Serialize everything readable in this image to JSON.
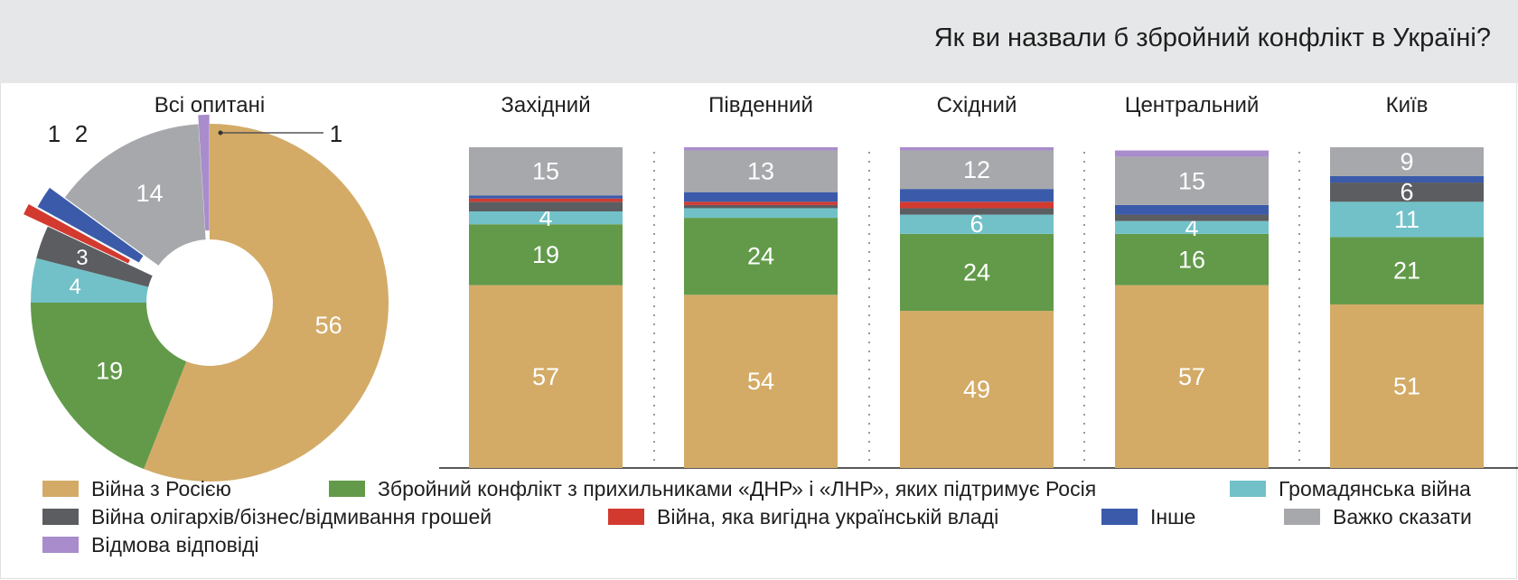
{
  "title": "Як ви назвали б збройний конфлікт в Україні?",
  "colors": {
    "russia_war": "#d3ab67",
    "armed_conflict": "#629a4a",
    "civil_war": "#72c1c8",
    "oligarchs": "#5b5d60",
    "govt_benefit": "#d23a30",
    "other": "#3b5baa",
    "hard_to_say": "#a7a8ab",
    "refused": "#a88ccb"
  },
  "chart_data": [
    {
      "type": "pie",
      "title": "Всі опитані",
      "categories": [
        "Війна з Росією",
        "Збройний конфлікт з прихильниками «ДНР» і «ЛНР», яких підтримує Росія",
        "Громадянська війна",
        "Війна олігархів/бізнес/відмивання грошей",
        "Війна, яка вигідна українській владі",
        "Інше",
        "Важко сказати",
        "Відмова відповіді"
      ],
      "values": [
        56,
        19,
        4,
        3,
        1,
        2,
        14,
        1
      ],
      "labels": [
        "56",
        "19",
        "4",
        "3",
        "1",
        "2",
        "14",
        "1"
      ]
    },
    {
      "type": "bar",
      "stacked": true,
      "categories": [
        "Західний",
        "Південний",
        "Східний",
        "Центральний",
        "Київ"
      ],
      "series": [
        {
          "name": "Війна з Росією",
          "values": [
            57,
            54,
            49,
            57,
            51
          ],
          "labels": [
            "57",
            "54",
            "49",
            "57",
            "51"
          ]
        },
        {
          "name": "Збройний конфлікт з прихильниками «ДНР» і «ЛНР», яких підтримує Росія",
          "values": [
            19,
            24,
            24,
            16,
            21
          ],
          "labels": [
            "19",
            "24",
            "24",
            "16",
            "21"
          ]
        },
        {
          "name": "Громадянська війна",
          "values": [
            4,
            3,
            6,
            4,
            11
          ],
          "labels": [
            "4",
            "",
            "6",
            "4",
            "11"
          ]
        },
        {
          "name": "Війна олігархів/бізнес/відмивання грошей",
          "values": [
            3,
            1,
            2,
            2,
            6
          ],
          "labels": [
            "",
            "",
            "",
            "",
            "6"
          ]
        },
        {
          "name": "Війна, яка вигідна українській владі",
          "values": [
            1,
            1,
            2,
            0,
            0
          ],
          "labels": [
            "",
            "",
            "",
            "",
            ""
          ]
        },
        {
          "name": "Інше",
          "values": [
            1,
            3,
            4,
            3,
            2
          ],
          "labels": [
            "",
            "",
            "",
            "",
            ""
          ]
        },
        {
          "name": "Важко сказати",
          "values": [
            15,
            13,
            12,
            15,
            9
          ],
          "labels": [
            "15",
            "13",
            "12",
            "15",
            "9"
          ]
        },
        {
          "name": "Відмова відповіді",
          "values": [
            0,
            1,
            1,
            2,
            0
          ],
          "labels": [
            "",
            "",
            "",
            "",
            ""
          ]
        }
      ]
    }
  ],
  "legend": [
    {
      "key": "russia_war",
      "label": "Війна з Росією"
    },
    {
      "key": "armed_conflict",
      "label": "Збройний конфлікт з прихильниками «ДНР» і «ЛНР», яких підтримує Росія"
    },
    {
      "key": "civil_war",
      "label": "Громадянська війна"
    },
    {
      "key": "oligarchs",
      "label": "Війна олігархів/бізнес/відмивання грошей"
    },
    {
      "key": "govt_benefit",
      "label": "Війна, яка вигідна українській владі"
    },
    {
      "key": "other",
      "label": "Інше"
    },
    {
      "key": "hard_to_say",
      "label": "Важко сказати"
    },
    {
      "key": "refused",
      "label": "Відмова відповіді"
    }
  ]
}
